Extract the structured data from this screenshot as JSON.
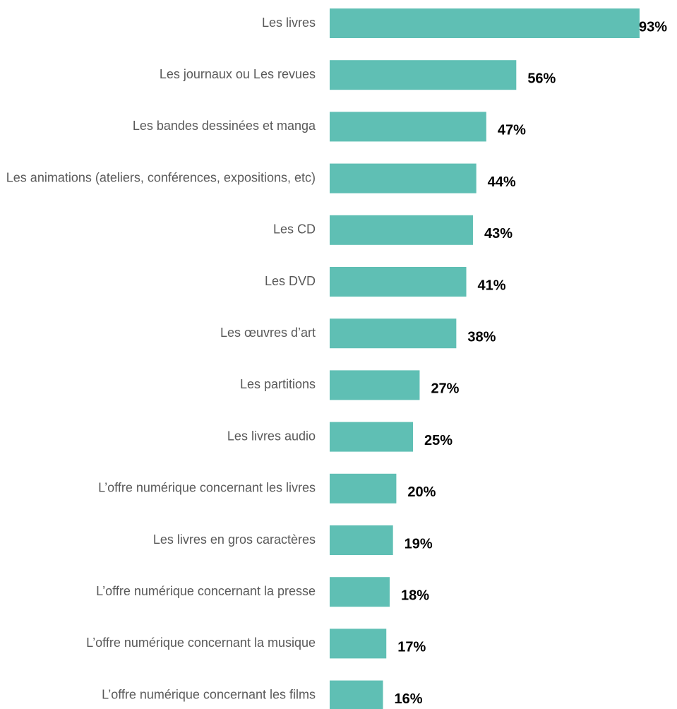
{
  "chart_data": {
    "type": "barh",
    "categories": [
      "Les livres",
      "Les journaux ou Les revues",
      "Les bandes dessinées et manga",
      "Les animations (ateliers, conférences, expositions, etc)",
      "Les CD",
      "Les DVD",
      "Les œuvres d’art",
      "Les partitions",
      "Les livres audio",
      "L’offre numérique concernant les livres",
      "Les livres en gros caractères",
      "L’offre numérique concernant la presse",
      "L’offre numérique concernant la musique",
      "L’offre numérique concernant les films"
    ],
    "values": [
      93,
      56,
      47,
      44,
      43,
      41,
      38,
      27,
      25,
      20,
      19,
      18,
      17,
      16
    ],
    "value_labels": [
      "93%",
      "56%",
      "47%",
      "44%",
      "43%",
      "41%",
      "38%",
      "27%",
      "25%",
      "20%",
      "19%",
      "18%",
      "17%",
      "16%"
    ],
    "color": "#5fbfb4",
    "xlim": [
      0,
      100
    ]
  }
}
